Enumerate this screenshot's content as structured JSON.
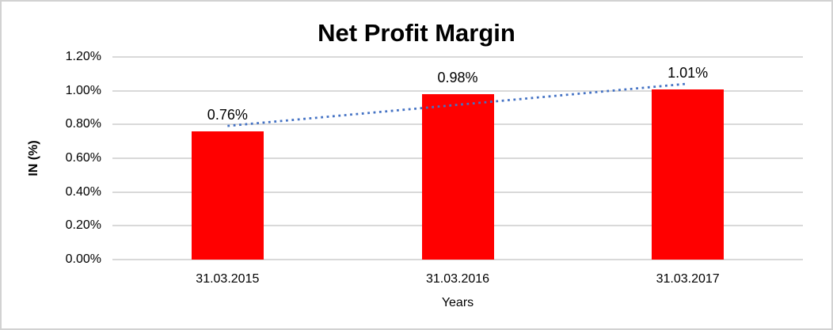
{
  "chart_data": {
    "type": "bar",
    "title": "Net Profit Margin",
    "xlabel": "Years",
    "ylabel": "IN (%)",
    "categories": [
      "31.03.2015",
      "31.03.2016",
      "31.03.2017"
    ],
    "values": [
      0.76,
      0.98,
      1.01
    ],
    "data_labels": [
      "0.76%",
      "0.98%",
      "1.01%"
    ],
    "y_ticks": [
      "1.20%",
      "1.00%",
      "0.80%",
      "0.60%",
      "0.40%",
      "0.20%",
      "0.00%"
    ],
    "ylim": [
      0,
      1.2
    ],
    "grid": true,
    "legend": false,
    "bar_color": "#ff0000",
    "gridline_color": "#d9d9d9",
    "trendline": {
      "type": "linear",
      "style": "dotted",
      "color": "#4472c4"
    }
  }
}
